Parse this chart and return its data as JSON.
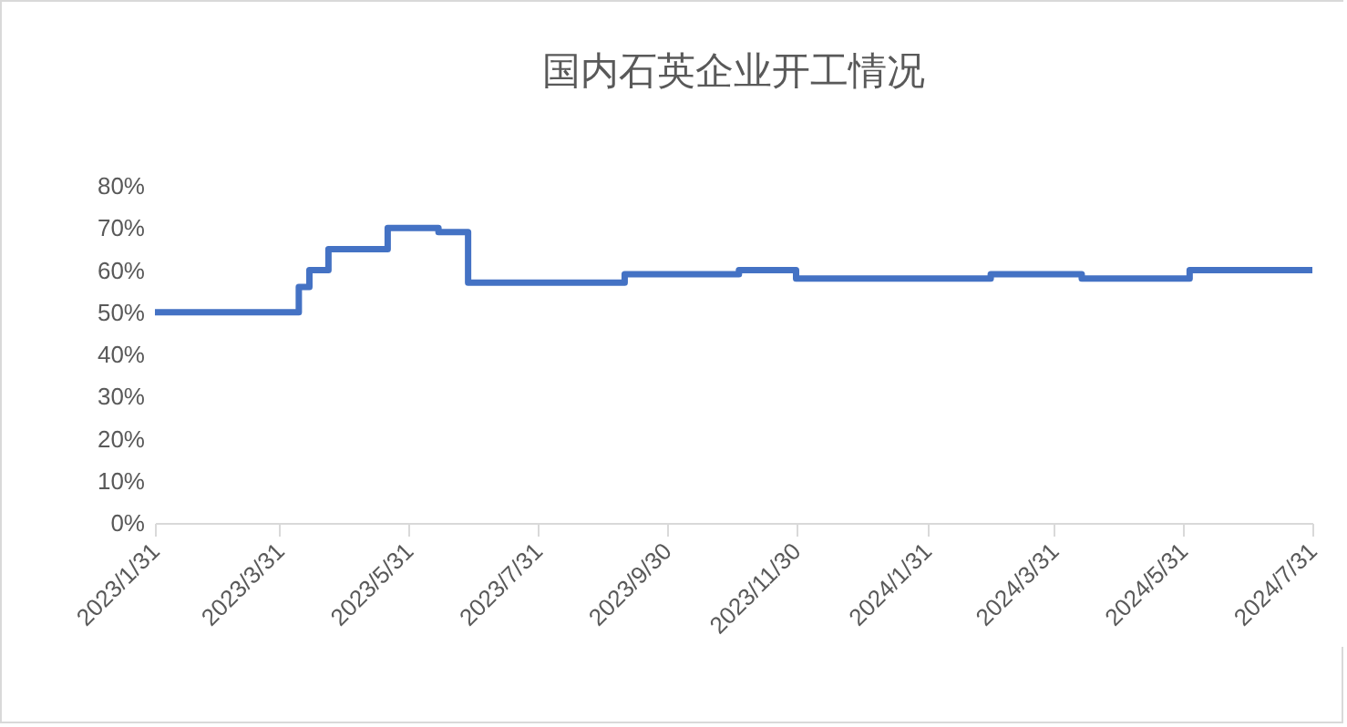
{
  "chart_data": {
    "type": "step",
    "title": "国内石英企业开工情况",
    "x": [
      "2023-01-31",
      "2023-04-09",
      "2023-04-14",
      "2023-04-23",
      "2023-05-21",
      "2023-06-14",
      "2023-06-28",
      "2023-09-10",
      "2023-11-03",
      "2023-11-30",
      "2024-03-01",
      "2024-04-13",
      "2024-06-03",
      "2024-07-31"
    ],
    "series": [
      {
        "color": "#4472c4",
        "values": [
          50,
          56,
          60,
          65,
          70,
          69,
          57,
          59,
          60,
          58,
          59,
          58,
          60,
          60
        ]
      }
    ],
    "xlim": [
      "2023-01-31",
      "2024-07-31"
    ],
    "xticks": [
      {
        "value": "2023-01-31",
        "label": "2023/1/31"
      },
      {
        "value": "2023-03-31",
        "label": "2023/3/31"
      },
      {
        "value": "2023-05-31",
        "label": "2023/5/31"
      },
      {
        "value": "2023-07-31",
        "label": "2023/7/31"
      },
      {
        "value": "2023-09-30",
        "label": "2023/9/30"
      },
      {
        "value": "2023-11-30",
        "label": "2023/11/30"
      },
      {
        "value": "2024-01-31",
        "label": "2024/1/31"
      },
      {
        "value": "2024-03-31",
        "label": "2024/3/31"
      },
      {
        "value": "2024-05-31",
        "label": "2024/5/31"
      },
      {
        "value": "2024-07-31",
        "label": "2024/7/31"
      }
    ],
    "ylim": [
      0,
      80
    ],
    "yticks": [
      {
        "value": 0,
        "label": "0%"
      },
      {
        "value": 10,
        "label": "10%"
      },
      {
        "value": 20,
        "label": "20%"
      },
      {
        "value": 30,
        "label": "30%"
      },
      {
        "value": 40,
        "label": "40%"
      },
      {
        "value": 50,
        "label": "50%"
      },
      {
        "value": 60,
        "label": "60%"
      },
      {
        "value": 70,
        "label": "70%"
      },
      {
        "value": 80,
        "label": "80%"
      }
    ],
    "grid": false
  }
}
